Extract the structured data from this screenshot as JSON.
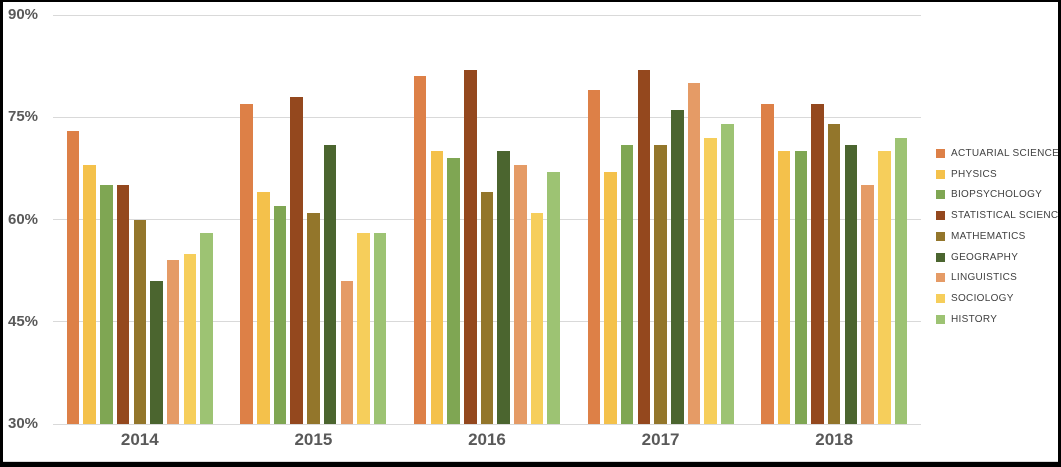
{
  "chart_data": {
    "type": "bar",
    "title": "",
    "categories": [
      "2014",
      "2015",
      "2016",
      "2017",
      "2018"
    ],
    "series": [
      {
        "name": "ACTUARIAL SCIENCE",
        "color": "#DD8047",
        "values": [
          73,
          77,
          81,
          79,
          77
        ]
      },
      {
        "name": "PHYSICS",
        "color": "#F4C14B",
        "values": [
          68,
          64,
          70,
          67,
          70
        ]
      },
      {
        "name": "BIOPSYCHOLOGY",
        "color": "#7FA653",
        "values": [
          65,
          62,
          69,
          71,
          70
        ]
      },
      {
        "name": "STATISTICAL SCIENCE",
        "color": "#94481E",
        "values": [
          65,
          78,
          82,
          82,
          77
        ]
      },
      {
        "name": "MATHEMATICS",
        "color": "#93762B",
        "values": [
          60,
          61,
          64,
          71,
          74
        ]
      },
      {
        "name": "GEOGRAPHY",
        "color": "#4B652F",
        "values": [
          51,
          71,
          70,
          76,
          71
        ]
      },
      {
        "name": "LINGUISTICS",
        "color": "#E59B66",
        "values": [
          54,
          51,
          68,
          80,
          65
        ]
      },
      {
        "name": "SOCIOLOGY",
        "color": "#F6CE5B",
        "values": [
          55,
          58,
          61,
          72,
          70
        ]
      },
      {
        "name": "HISTORY",
        "color": "#9DC373",
        "values": [
          58,
          58,
          67,
          74,
          72
        ]
      }
    ],
    "y_axis": {
      "min": 30,
      "max": 90,
      "ticks": [
        {
          "value": 90,
          "label": "90%"
        },
        {
          "value": 75,
          "label": "75%"
        },
        {
          "value": 60,
          "label": "60%"
        },
        {
          "value": 45,
          "label": "45%"
        },
        {
          "value": 30,
          "label": "30%"
        }
      ]
    },
    "xlabel": "",
    "ylabel": "",
    "legend_position": "right",
    "grid": true
  },
  "colors": {
    "axis_label": "#595959",
    "legend_text": "#404040",
    "gridline": "#D9D9D9",
    "frame_border": "#000000",
    "background": "#FFFFFF"
  }
}
